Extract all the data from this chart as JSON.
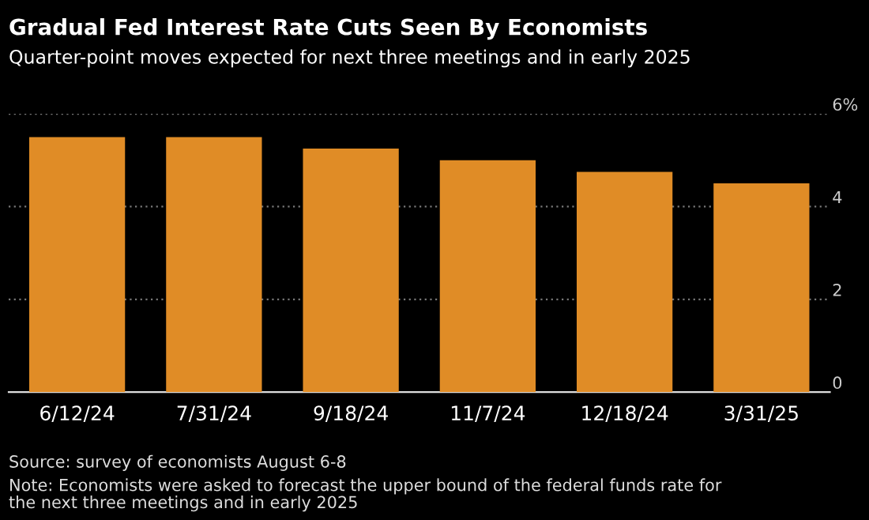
{
  "chart_data": {
    "type": "bar",
    "title": "Gradual Fed Interest Rate Cuts Seen By Economists",
    "subtitle": "Quarter-point moves expected for next three meetings and in early 2025",
    "categories": [
      "6/12/24",
      "7/31/24",
      "9/18/24",
      "11/7/24",
      "12/18/24",
      "3/31/25"
    ],
    "values": [
      5.5,
      5.5,
      5.25,
      5.0,
      4.75,
      4.5
    ],
    "color": "#e08c26",
    "ylim": [
      0,
      6
    ],
    "yticks": [
      0,
      2,
      4,
      {
        "value": 6,
        "label": "6%"
      }
    ],
    "grid": "y",
    "annotations": [
      "Source: survey of economists August 6-8",
      "Note: Economists were asked to forecast the upper bound of the federal funds rate for\nthe next three meetings and in early 2025"
    ]
  }
}
